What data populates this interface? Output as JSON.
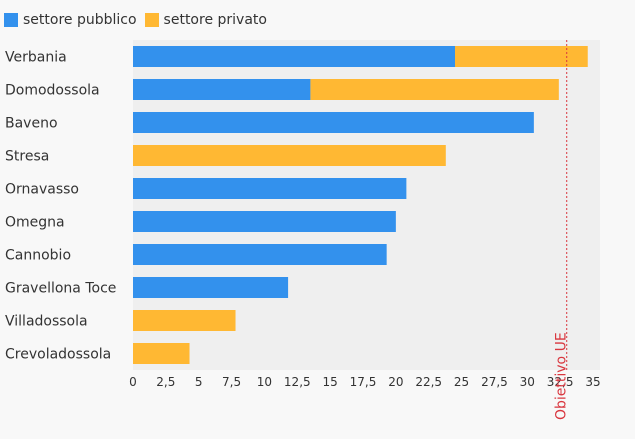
{
  "chart_data": {
    "type": "bar",
    "orientation": "horizontal",
    "stacked": true,
    "categories": [
      "Verbania",
      "Domodossola",
      "Baveno",
      "Stresa",
      "Ornavasso",
      "Omegna",
      "Cannobio",
      "Gravellona Toce",
      "Villadossola",
      "Crevoladossola"
    ],
    "series": [
      {
        "name": "settore pubblico",
        "color": "#3391ed",
        "values": [
          24.5,
          13.5,
          30.5,
          0,
          20.8,
          20.0,
          19.3,
          11.8,
          0,
          0
        ]
      },
      {
        "name": "settore privato",
        "color": "#ffb833",
        "values": [
          10.1,
          18.9,
          0,
          23.8,
          0,
          0,
          0,
          0,
          7.8,
          4.3
        ]
      }
    ],
    "xlim": [
      0,
      35
    ],
    "xticks": [
      "0",
      "2,5",
      "5",
      "7,5",
      "10",
      "12,5",
      "15",
      "17,5",
      "20",
      "22,5",
      "25",
      "27,5",
      "30",
      "32,5",
      "35"
    ],
    "reference_line": {
      "value": 33,
      "label": "Obiettivo UE",
      "color": "#d9363e"
    },
    "legend_position": "top-left",
    "grid": false
  }
}
